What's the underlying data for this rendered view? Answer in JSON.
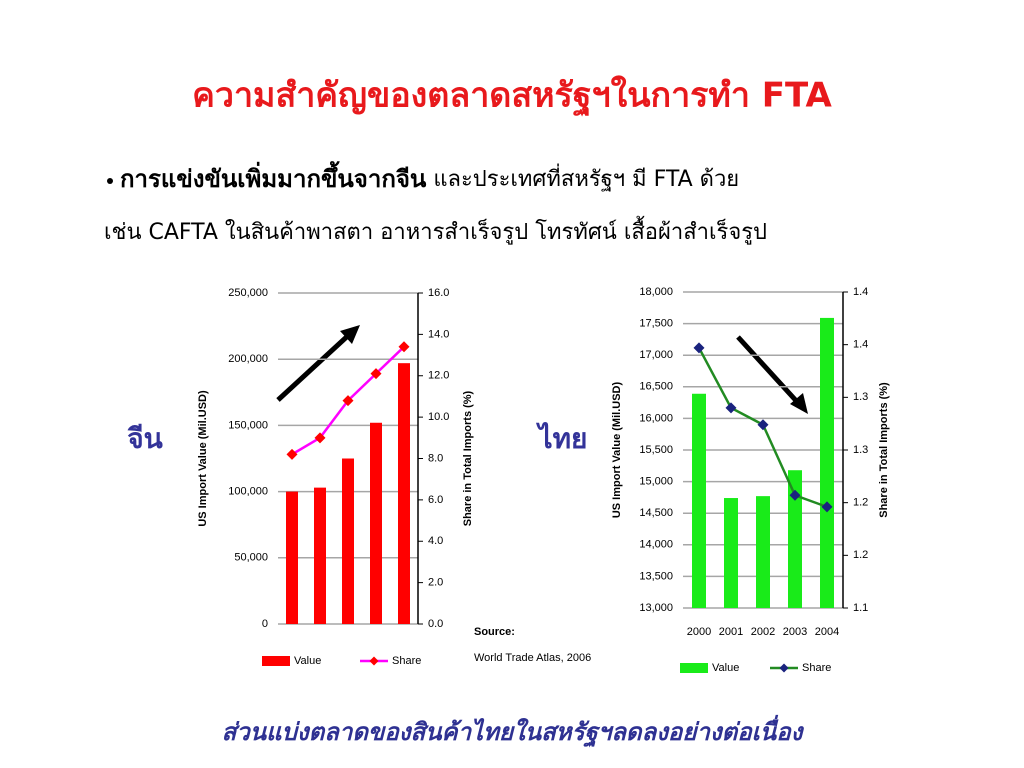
{
  "slide": {
    "title": "ความสำคัญของตลาดสหรัฐฯในการทำ FTA",
    "bullet_bold": "การแข่งขันเพิ่มมากขึ้นจากจีน",
    "bullet_rest": " และประเทศที่สหรัฐฯ มี FTA ด้วย",
    "bullet_line2": "เช่น CAFTA ในสินค้าพาสตา อาหารสำเร็จรูป โทรทัศน์ เสื้อผ้าสำเร็จรูป",
    "label_china": "จีน",
    "label_thai": "ไทย",
    "source_label": "Source:",
    "source_text": "World Trade Atlas, 2006",
    "footer": "ส่วนแบ่งตลาดของสินค้าไทยในสหรัฐฯลดลงอย่างต่อเนื่อง"
  },
  "chart_data": [
    {
      "type": "bar",
      "grid": true,
      "legend": "bottom",
      "categories": [
        null,
        null,
        null,
        null,
        null
      ],
      "y_label": "US Import Value (Mil.USD)",
      "y2_label": "Share in Total Imports (%)",
      "ylim": [
        0,
        250000
      ],
      "yticks": [
        0,
        {
          "value": 50000,
          "label": "50,000"
        },
        {
          "value": 100000,
          "label": "100,000"
        },
        {
          "value": 150000,
          "label": "150,000"
        },
        {
          "value": 200000,
          "label": "200,000"
        },
        {
          "value": 250000,
          "label": "250,000"
        }
      ],
      "y2lim": [
        0,
        16
      ],
      "y2ticks": [
        {
          "value": 0,
          "label": "0.0"
        },
        {
          "value": 2,
          "label": "2.0"
        },
        {
          "value": 4,
          "label": "4.0"
        },
        {
          "value": 6,
          "label": "6.0"
        },
        {
          "value": 8,
          "label": "8.0"
        },
        {
          "value": 10,
          "label": "10.0"
        },
        {
          "value": 12,
          "label": "12.0"
        },
        {
          "value": 14,
          "label": "14.0"
        },
        {
          "value": 16,
          "label": "16.0"
        }
      ],
      "series": [
        {
          "name": "Value",
          "color": "#ff0000",
          "values": [
            100000,
            103000,
            125000,
            152000,
            197000
          ]
        },
        {
          "name": "Share",
          "type": "line",
          "axis": "y2",
          "color": "#ff00ff",
          "marker_color": "#ff0000",
          "values": [
            8.2,
            9.0,
            10.8,
            12.1,
            13.4
          ]
        }
      ]
    },
    {
      "type": "bar",
      "grid": true,
      "legend": "bottom",
      "categories": [
        "2000",
        "2001",
        "2002",
        "2003",
        "2004"
      ],
      "y_label": "US Import Value (Mil.USD)",
      "y2_label": "Share in Total Imports (%)",
      "ylim": [
        13000,
        18000
      ],
      "yticks": [
        {
          "value": 13000,
          "label": "13,000"
        },
        {
          "value": 13500,
          "label": "13,500"
        },
        {
          "value": 14000,
          "label": "14,000"
        },
        {
          "value": 14500,
          "label": "14,500"
        },
        {
          "value": 15000,
          "label": "15,000"
        },
        {
          "value": 15500,
          "label": "15,500"
        },
        {
          "value": 16000,
          "label": "16,000"
        },
        {
          "value": 16500,
          "label": "16,500"
        },
        {
          "value": 17000,
          "label": "17,000"
        },
        {
          "value": 17500,
          "label": "17,500"
        },
        {
          "value": 18000,
          "label": "18,000"
        }
      ],
      "y2lim": [
        1.1,
        1.4
      ],
      "y2ticks": [
        1.1,
        {
          "value": 1.15,
          "label": "1.2"
        },
        1.2,
        {
          "value": 1.25,
          "label": "1.3"
        },
        1.3,
        {
          "value": 1.35,
          "label": "1.4"
        },
        1.4
      ],
      "series": [
        {
          "name": "Value",
          "color": "#19eb19",
          "values": [
            16390,
            14740,
            14770,
            15180,
            17590
          ]
        },
        {
          "name": "Share",
          "type": "line",
          "axis": "y2",
          "color": "#228b22",
          "marker_color": "#1a237e",
          "values": [
            1.347,
            1.29,
            1.274,
            1.207,
            1.196
          ]
        }
      ]
    }
  ]
}
